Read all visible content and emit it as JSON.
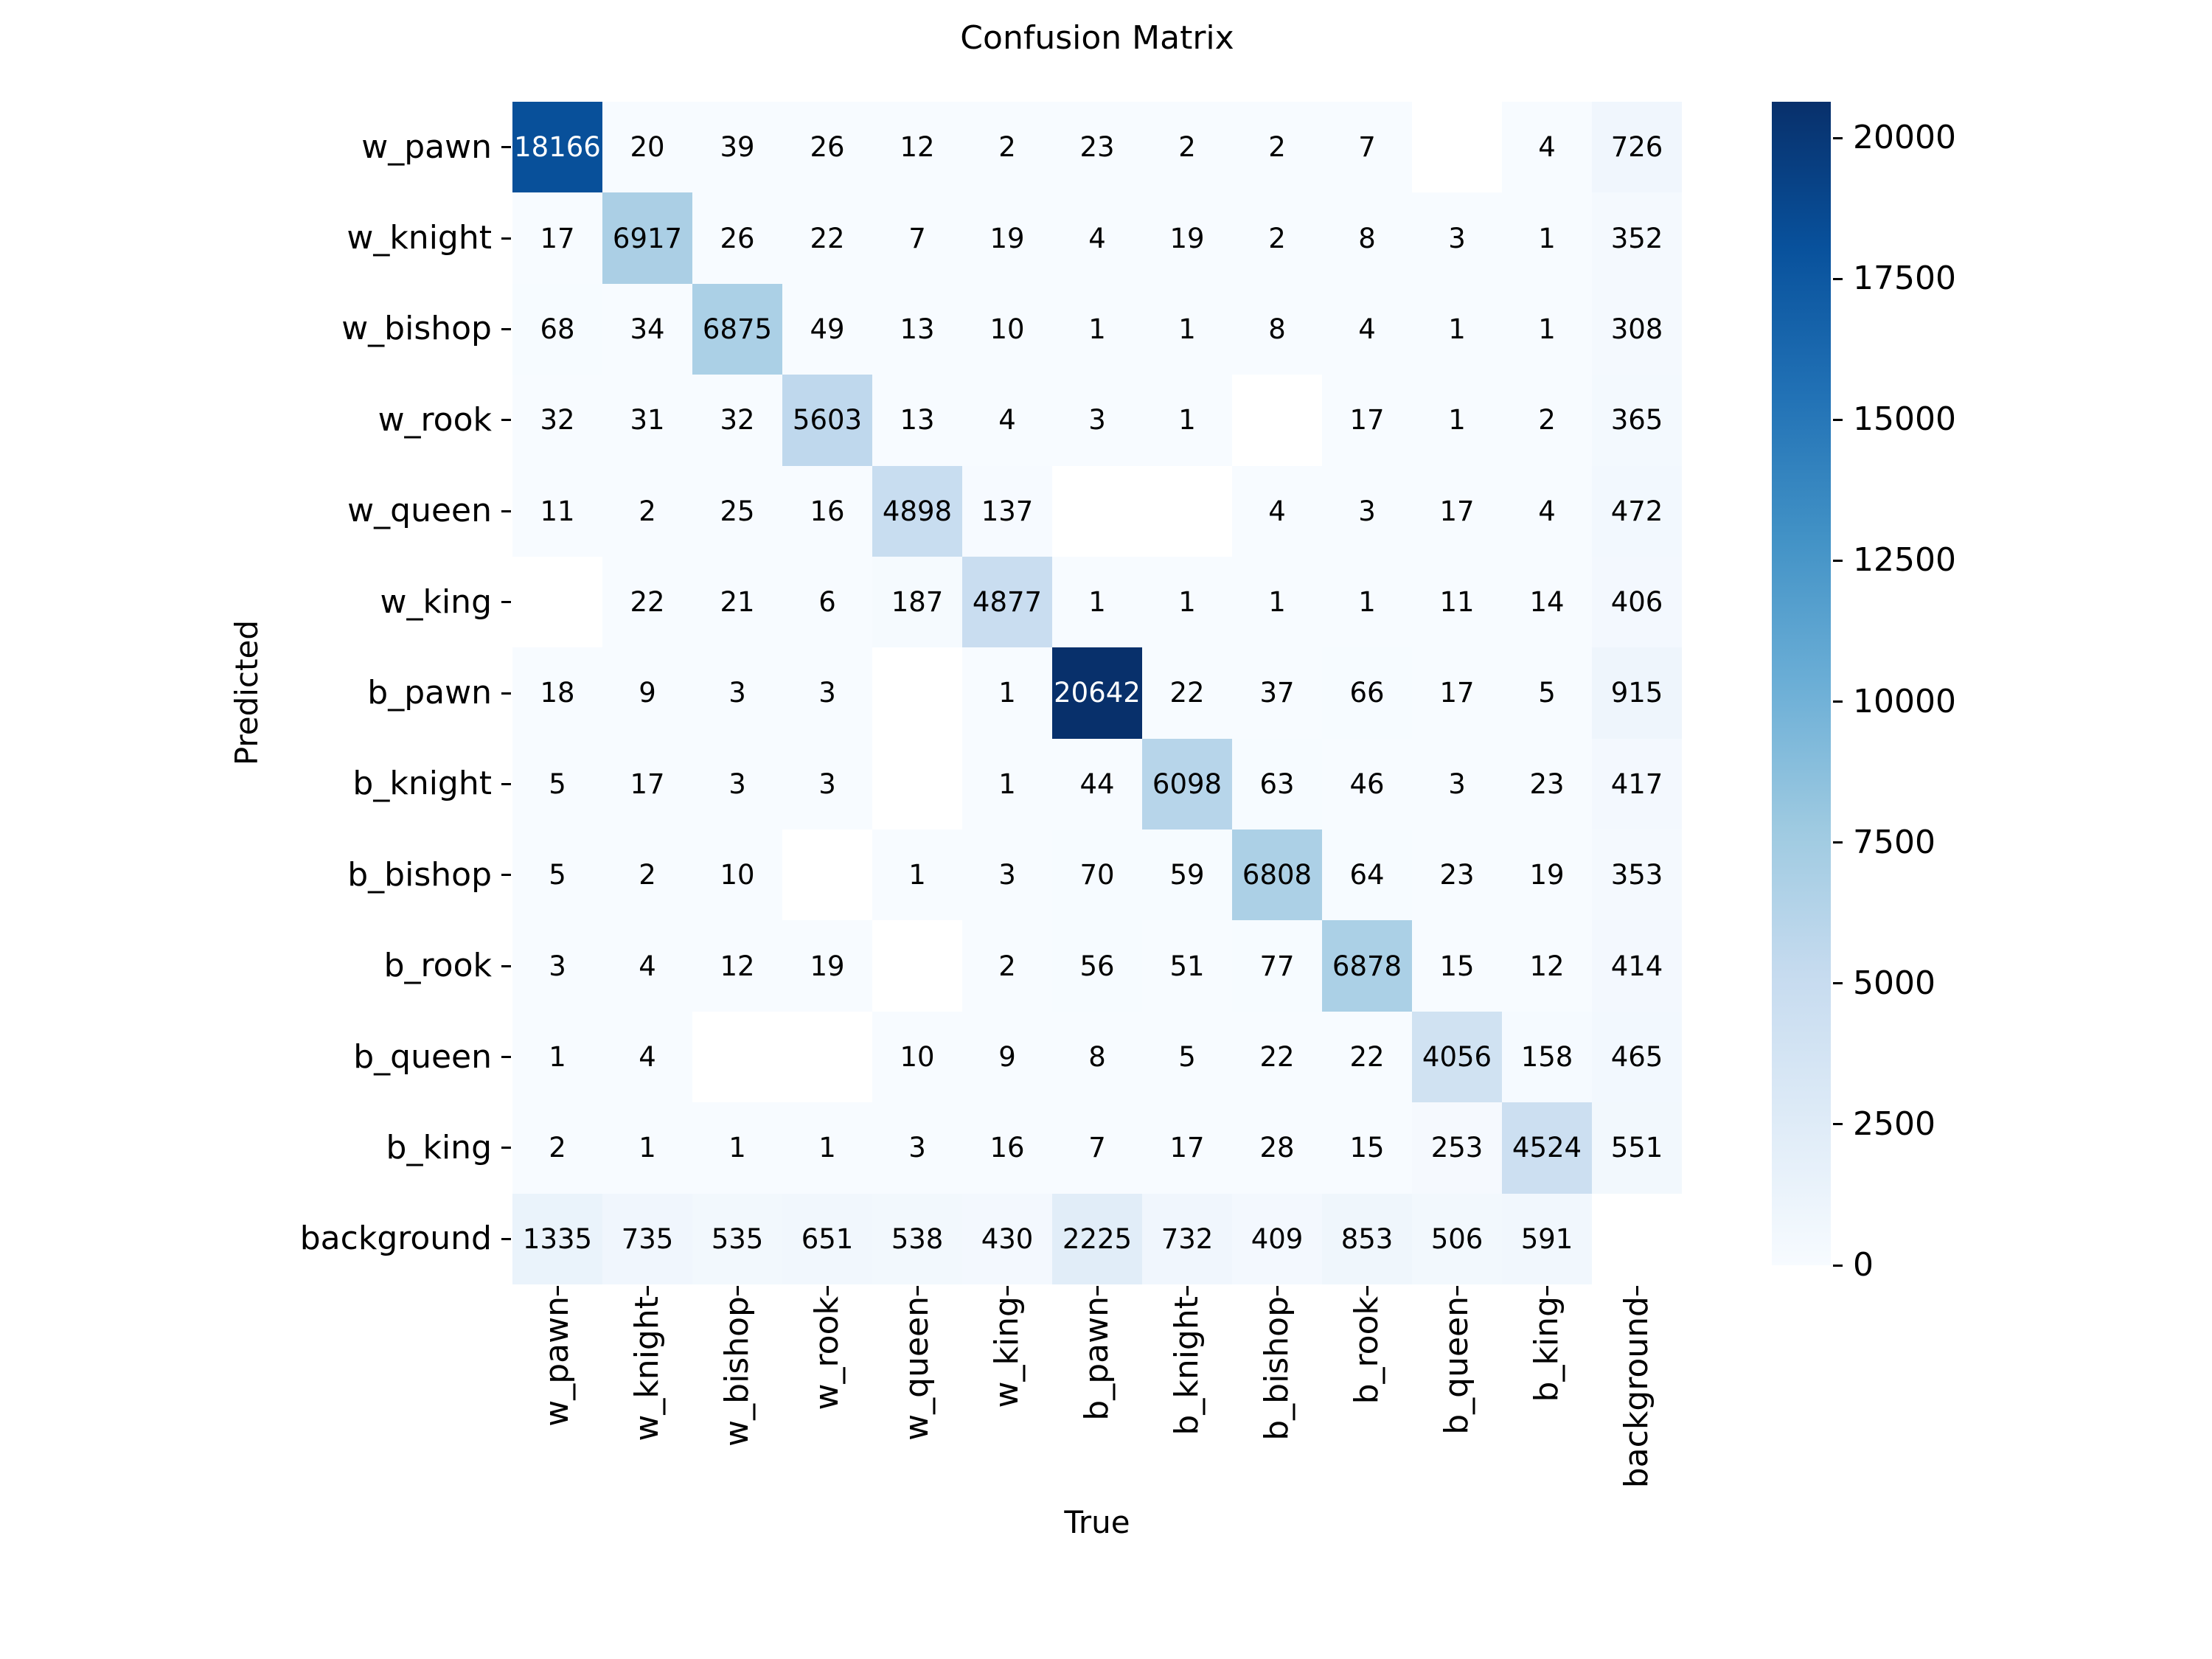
{
  "title": "Confusion Matrix",
  "x_axis_title": "True",
  "y_axis_title": "Predicted",
  "chart_data": {
    "type": "heatmap",
    "title": "Confusion Matrix",
    "xlabel": "True",
    "ylabel": "Predicted",
    "categories": [
      "w_pawn",
      "w_knight",
      "w_bishop",
      "w_rook",
      "w_queen",
      "w_king",
      "b_pawn",
      "b_knight",
      "b_bishop",
      "b_rook",
      "b_queen",
      "b_king",
      "background"
    ],
    "x_categories": [
      "w_pawn",
      "w_knight",
      "w_bishop",
      "w_rook",
      "w_queen",
      "w_king",
      "b_pawn",
      "b_knight",
      "b_bishop",
      "b_rook",
      "b_queen",
      "b_king",
      "background"
    ],
    "y_categories": [
      "w_pawn",
      "w_knight",
      "w_bishop",
      "w_rook",
      "w_queen",
      "w_king",
      "b_pawn",
      "b_knight",
      "b_bishop",
      "b_rook",
      "b_queen",
      "b_king",
      "background"
    ],
    "matrix": [
      [
        18166,
        20,
        39,
        26,
        12,
        2,
        23,
        2,
        2,
        7,
        null,
        4,
        726
      ],
      [
        17,
        6917,
        26,
        22,
        7,
        19,
        4,
        19,
        2,
        8,
        3,
        1,
        352
      ],
      [
        68,
        34,
        6875,
        49,
        13,
        10,
        1,
        1,
        8,
        4,
        1,
        1,
        308
      ],
      [
        32,
        31,
        32,
        5603,
        13,
        4,
        3,
        1,
        null,
        17,
        1,
        2,
        365
      ],
      [
        11,
        2,
        25,
        16,
        4898,
        137,
        null,
        null,
        4,
        3,
        17,
        4,
        472
      ],
      [
        null,
        22,
        21,
        6,
        187,
        4877,
        1,
        1,
        1,
        1,
        11,
        14,
        406
      ],
      [
        18,
        9,
        3,
        3,
        null,
        1,
        20642,
        22,
        37,
        66,
        17,
        5,
        915
      ],
      [
        5,
        17,
        3,
        3,
        null,
        1,
        44,
        6098,
        63,
        46,
        3,
        23,
        417
      ],
      [
        5,
        2,
        10,
        null,
        1,
        3,
        70,
        59,
        6808,
        64,
        23,
        19,
        353
      ],
      [
        3,
        4,
        12,
        19,
        null,
        2,
        56,
        51,
        77,
        6878,
        15,
        12,
        414
      ],
      [
        1,
        4,
        null,
        null,
        10,
        9,
        8,
        5,
        22,
        22,
        4056,
        158,
        465
      ],
      [
        2,
        1,
        1,
        1,
        3,
        16,
        7,
        17,
        28,
        15,
        253,
        4524,
        551
      ],
      [
        1335,
        735,
        535,
        651,
        538,
        430,
        2225,
        732,
        409,
        853,
        506,
        591,
        null
      ]
    ],
    "vmin": 0,
    "vmax": 20642,
    "colormap": "Blues",
    "colormap_anchors": [
      "#f7fbff",
      "#deebf7",
      "#c6dbef",
      "#9ecae1",
      "#6baed6",
      "#4292c6",
      "#2171b5",
      "#08519c",
      "#08306b"
    ],
    "empty_cell_color": "#ffffff",
    "annotation_color_dark": "#000000",
    "annotation_color_light": "#ffffff",
    "colorbar_ticks": [
      0,
      2500,
      5000,
      7500,
      10000,
      12500,
      15000,
      17500,
      20000
    ],
    "colorbar_position": "right",
    "grid": false
  }
}
